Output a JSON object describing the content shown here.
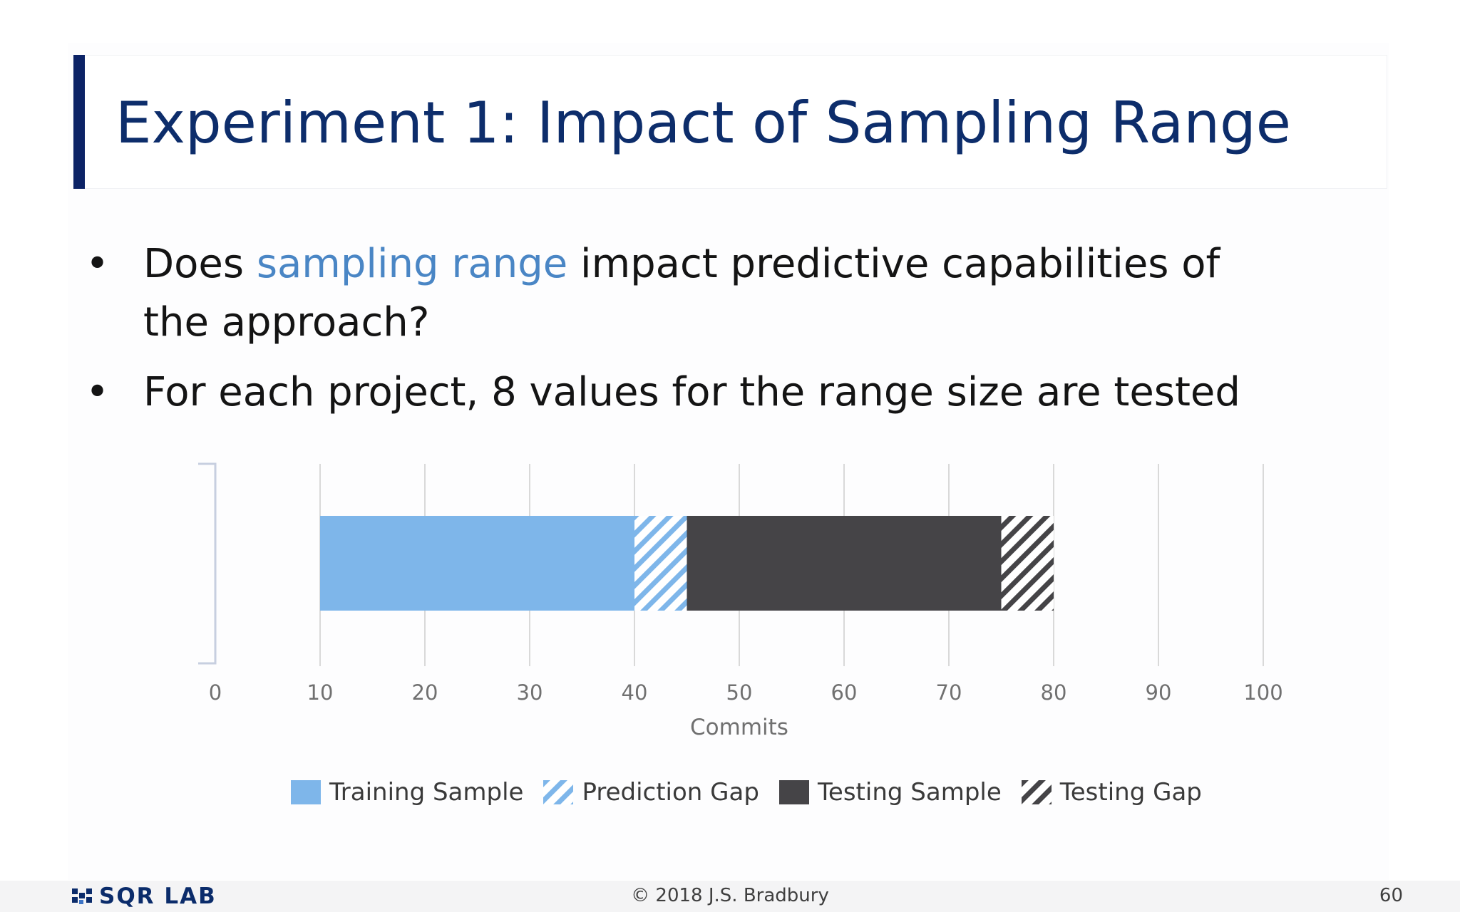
{
  "slide": {
    "title": "Experiment 1: Impact of Sampling Range",
    "bullets": [
      {
        "pre": "Does ",
        "highlight": "sampling range",
        "post": " impact predictive capabilities of the approach?"
      },
      {
        "pre": "For each project, 8 values for the range size are tested",
        "highlight": "",
        "post": ""
      }
    ],
    "bullet_symbol": "•",
    "highlight_color": "#4a86c5"
  },
  "chart_data": {
    "type": "bar",
    "orientation": "horizontal",
    "stacked": true,
    "xlabel": "Commits",
    "xlim": [
      0,
      100
    ],
    "xticks": [
      0,
      10,
      20,
      30,
      40,
      50,
      60,
      70,
      80,
      90,
      100
    ],
    "grid": true,
    "legend_position": "bottom",
    "series": [
      {
        "name": "Training Sample",
        "start": 10,
        "end": 40,
        "color": "#7eb6ea",
        "pattern": "solid",
        "icon": "training-sample-swatch"
      },
      {
        "name": "Prediction Gap",
        "start": 40,
        "end": 45,
        "color": "#7eb6ea",
        "pattern": "hatched",
        "icon": "prediction-gap-swatch"
      },
      {
        "name": "Testing Sample",
        "start": 45,
        "end": 75,
        "color": "#454447",
        "pattern": "solid",
        "icon": "testing-sample-swatch"
      },
      {
        "name": "Testing Gap",
        "start": 75,
        "end": 80,
        "color": "#454447",
        "pattern": "hatched",
        "icon": "testing-gap-swatch"
      }
    ]
  },
  "footer": {
    "logo_text": "SQR LAB",
    "logo_icon": "sqr-lab-logo-icon",
    "copyright": "© 2018 J.S. Bradbury",
    "page_number": "60"
  }
}
